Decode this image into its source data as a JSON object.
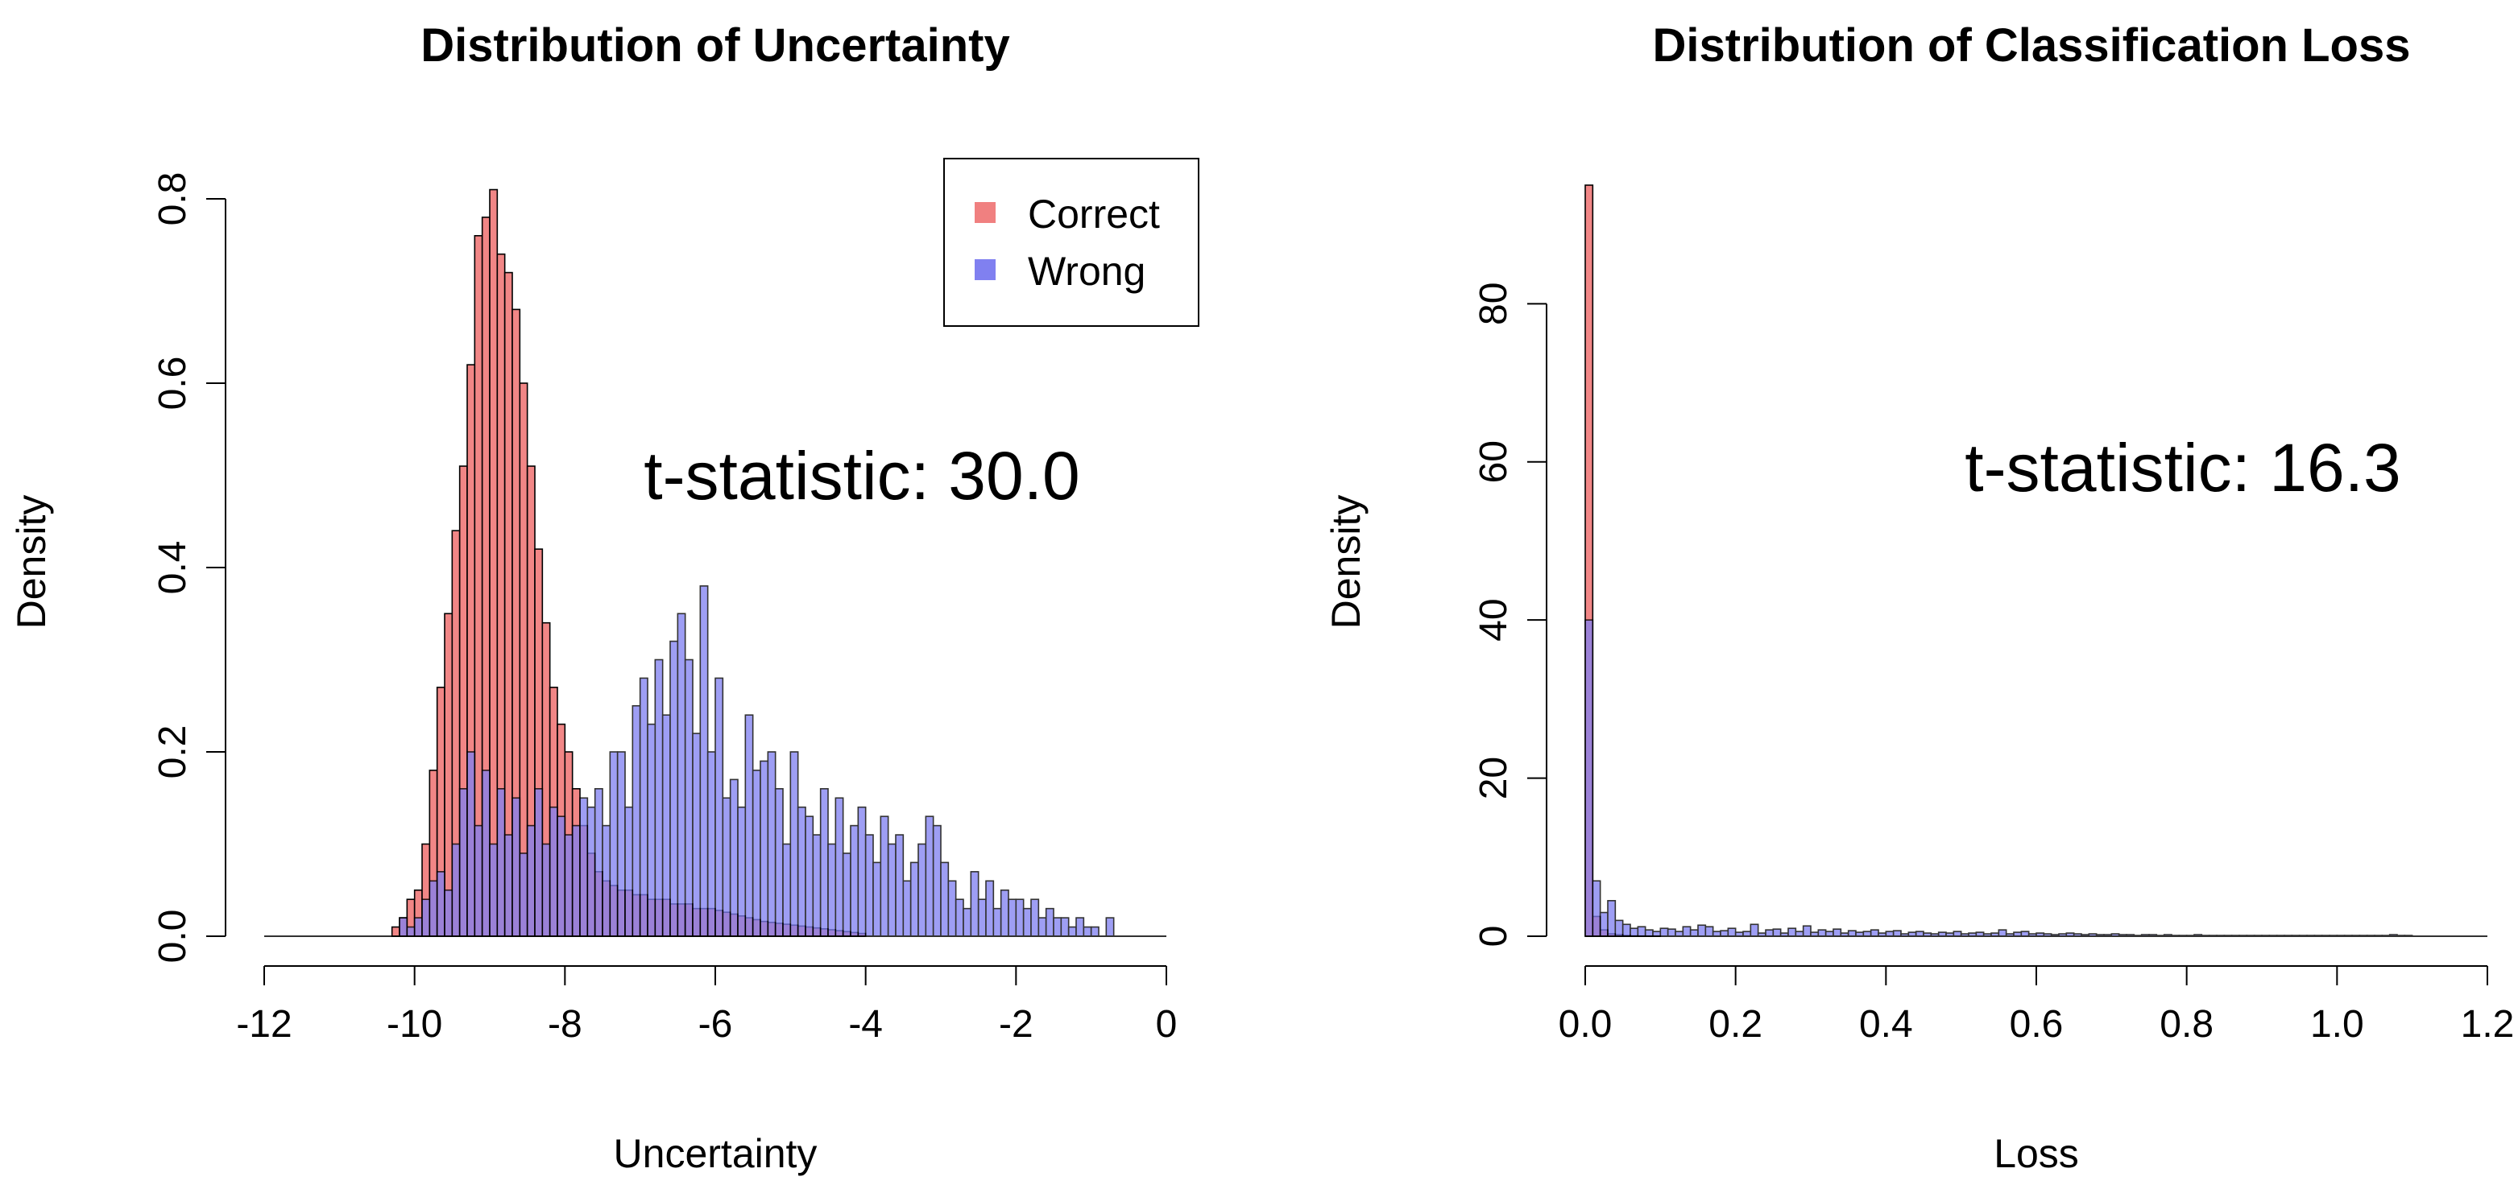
{
  "chart_data": [
    {
      "type": "histogram",
      "title": "Distribution of Uncertainty",
      "xlabel": "Uncertainty",
      "ylabel": "Density",
      "xlim": [
        -12,
        0
      ],
      "ylim": [
        0,
        0.8
      ],
      "xticks": [
        "-12",
        "-10",
        "-8",
        "-6",
        "-4",
        "-2",
        "0"
      ],
      "yticks": [
        "0.0",
        "0.2",
        "0.4",
        "0.6",
        "0.8"
      ],
      "annotation": "t-statistic: 30.0",
      "legend": {
        "position": "top-right",
        "entries": [
          "Correct",
          "Wrong"
        ]
      },
      "bin_width": 0.1,
      "series": [
        {
          "name": "Correct",
          "color": "#f08080",
          "x_start": -10.3,
          "values": [
            0.01,
            0.02,
            0.04,
            0.05,
            0.1,
            0.18,
            0.27,
            0.35,
            0.44,
            0.51,
            0.62,
            0.76,
            0.78,
            0.81,
            0.74,
            0.72,
            0.68,
            0.6,
            0.51,
            0.42,
            0.34,
            0.27,
            0.23,
            0.2,
            0.16,
            0.12,
            0.09,
            0.07,
            0.06,
            0.055,
            0.05,
            0.05,
            0.045,
            0.045,
            0.04,
            0.04,
            0.04,
            0.035,
            0.035,
            0.035,
            0.03,
            0.03,
            0.03,
            0.028,
            0.026,
            0.024,
            0.022,
            0.02,
            0.018,
            0.016,
            0.015,
            0.014,
            0.013,
            0.012,
            0.011,
            0.01,
            0.009,
            0.008,
            0.007,
            0.006,
            0.005,
            0.004,
            0.003
          ]
        },
        {
          "name": "Wrong",
          "color": "#8080f0",
          "x_start": -10.2,
          "values": [
            0.02,
            0.01,
            0.02,
            0.04,
            0.06,
            0.07,
            0.05,
            0.1,
            0.16,
            0.2,
            0.12,
            0.18,
            0.1,
            0.16,
            0.11,
            0.15,
            0.09,
            0.12,
            0.16,
            0.1,
            0.14,
            0.13,
            0.11,
            0.12,
            0.15,
            0.14,
            0.16,
            0.12,
            0.2,
            0.2,
            0.14,
            0.25,
            0.28,
            0.23,
            0.3,
            0.24,
            0.32,
            0.35,
            0.3,
            0.22,
            0.38,
            0.2,
            0.28,
            0.15,
            0.17,
            0.14,
            0.24,
            0.18,
            0.19,
            0.2,
            0.16,
            0.1,
            0.2,
            0.14,
            0.13,
            0.11,
            0.16,
            0.1,
            0.15,
            0.09,
            0.12,
            0.14,
            0.11,
            0.08,
            0.13,
            0.1,
            0.11,
            0.06,
            0.08,
            0.1,
            0.13,
            0.12,
            0.08,
            0.06,
            0.04,
            0.03,
            0.07,
            0.04,
            0.06,
            0.03,
            0.05,
            0.04,
            0.04,
            0.03,
            0.04,
            0.02,
            0.03,
            0.02,
            0.02,
            0.01,
            0.02,
            0.01,
            0.01,
            0.0,
            0.02
          ]
        }
      ]
    },
    {
      "type": "histogram",
      "title": "Distribution of Classification Loss",
      "xlabel": "Loss",
      "ylabel": "Density",
      "xlim": [
        0,
        1.2
      ],
      "ylim": [
        0,
        95
      ],
      "xticks": [
        "0.0",
        "0.2",
        "0.4",
        "0.6",
        "0.8",
        "1.0",
        "1.2"
      ],
      "yticks": [
        "0",
        "20",
        "40",
        "60",
        "80"
      ],
      "annotation": "t-statistic: 16.3",
      "bin_width": 0.01,
      "series": [
        {
          "name": "Correct",
          "color": "#f08080",
          "x_start": 0.0,
          "values": [
            95,
            2.5,
            0.8,
            0.3,
            0.2,
            0.1,
            0.05,
            0.03,
            0.02,
            0.01
          ]
        },
        {
          "name": "Wrong",
          "color": "#8080f0",
          "x_start": 0.0,
          "values": [
            40,
            7,
            3,
            4.5,
            2,
            1.5,
            1,
            1.2,
            0.8,
            0.6,
            1,
            0.9,
            0.6,
            1.2,
            0.8,
            1.4,
            1.2,
            0.6,
            0.7,
            1,
            0.5,
            0.6,
            1.5,
            0.4,
            0.8,
            0.9,
            0.4,
            1,
            0.6,
            1.3,
            0.5,
            0.8,
            0.6,
            0.9,
            0.4,
            0.7,
            0.5,
            0.6,
            0.8,
            0.4,
            0.6,
            0.7,
            0.3,
            0.5,
            0.6,
            0.4,
            0.3,
            0.5,
            0.4,
            0.6,
            0.3,
            0.4,
            0.5,
            0.3,
            0.4,
            0.8,
            0.3,
            0.5,
            0.6,
            0.3,
            0.4,
            0.3,
            0.2,
            0.3,
            0.4,
            0.3,
            0.2,
            0.3,
            0.2,
            0.2,
            0.3,
            0.2,
            0.2,
            0.1,
            0.2,
            0.2,
            0.1,
            0.2,
            0.1,
            0.1,
            0.1,
            0.2,
            0.1,
            0.1,
            0.1,
            0.1,
            0.1,
            0.1,
            0.1,
            0.1,
            0.1,
            0.1,
            0.1,
            0.1,
            0.1,
            0.1,
            0.1,
            0.1,
            0.1,
            0.1,
            0.1,
            0.1,
            0.1,
            0.1,
            0.1,
            0.1,
            0.1,
            0.2,
            0.1,
            0.1
          ]
        }
      ]
    }
  ]
}
